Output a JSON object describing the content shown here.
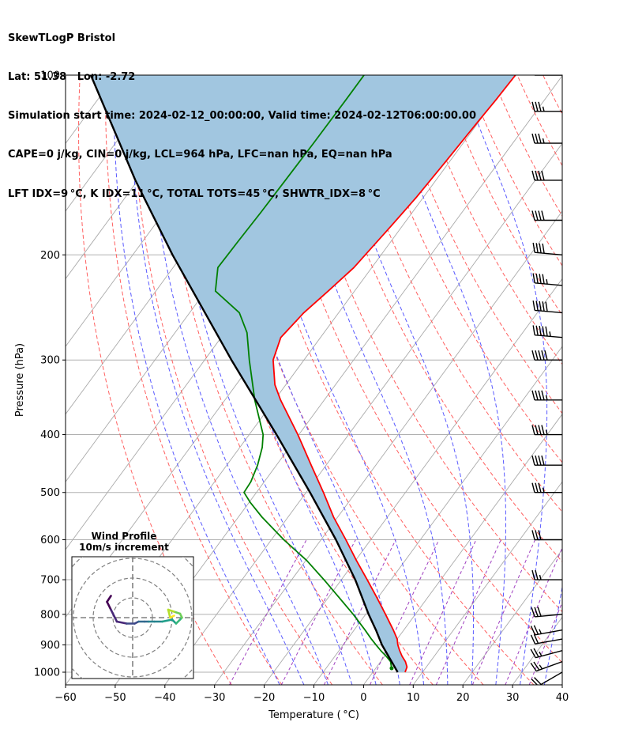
{
  "header": {
    "lines": [
      "SkewTLogP Bristol",
      "Lat: 51.38   Lon: -2.72",
      "Simulation start time: 2024-02-12_00:00:00, Valid time: 2024-02-12T06:00:00.00",
      "CAPE=0 j/kg, CIN=0 j/kg, LCL=964 hPa, LFC=nan hPa, EQ=nan hPa",
      "LFT IDX=9 °C, K IDX=11 °C, TOTAL TOTS=45 °C, SHWTR_IDX=8 °C"
    ]
  },
  "chart_data": {
    "type": "line",
    "subtype": "skew-t log-p",
    "xlabel": "Temperature ( °C)",
    "ylabel": "Pressure (hPa)",
    "xlim": [
      -60,
      40
    ],
    "ylim": [
      1050,
      100
    ],
    "yscale": "log",
    "xticks": [
      -60,
      -50,
      -40,
      -30,
      -20,
      -10,
      0,
      10,
      20,
      30,
      40
    ],
    "yticks": [
      100,
      200,
      300,
      400,
      500,
      600,
      700,
      800,
      900,
      1000
    ],
    "grid": true,
    "colors": {
      "temperature": "#ff0000",
      "dewpoint": "#008000",
      "parcel": "#000000",
      "shade": "#a1c6e0",
      "isotherms": "#aaaaaa",
      "dry_adiabats": "#ff6060",
      "moist_adiabats": "#5a5aff",
      "mixing_ratio": "#a040c0"
    },
    "series": [
      {
        "name": "temperature",
        "pressure": [
          1000,
          980,
          960,
          940,
          920,
          900,
          880,
          850,
          800,
          750,
          700,
          650,
          600,
          550,
          500,
          450,
          400,
          350,
          330,
          300,
          275,
          250,
          230,
          210,
          200,
          180,
          160,
          140,
          120,
          110,
          100
        ],
        "values": [
          6.5,
          6.1,
          5.0,
          3.5,
          2.2,
          1.0,
          0.0,
          -2.1,
          -6.0,
          -10.2,
          -14.8,
          -19.8,
          -25.0,
          -30.8,
          -36.5,
          -43.0,
          -50.2,
          -58.8,
          -62.2,
          -66.2,
          -68.0,
          -67.0,
          -65.3,
          -63.6,
          -63.2,
          -62.3,
          -61.4,
          -60.8,
          -60.2,
          -59.8,
          -59.5
        ]
      },
      {
        "name": "dewpoint",
        "pressure": [
          985,
          960,
          940,
          920,
          900,
          880,
          850,
          800,
          750,
          700,
          650,
          600,
          550,
          520,
          500,
          480,
          450,
          420,
          400,
          350,
          300,
          270,
          250,
          230,
          210,
          190,
          170,
          150,
          130,
          110,
          100
        ],
        "values": [
          3.2,
          2.0,
          0.3,
          -1.6,
          -3.4,
          -5.2,
          -7.8,
          -12.5,
          -17.8,
          -23.5,
          -29.8,
          -37.5,
          -45.2,
          -49.7,
          -52.5,
          -52.7,
          -53.8,
          -55.5,
          -57.2,
          -64.0,
          -71.0,
          -75.5,
          -80.0,
          -88.0,
          -91.0,
          -90.8,
          -90.5,
          -90.3,
          -90.1,
          -90.0,
          -90.0
        ]
      },
      {
        "name": "parcel",
        "pressure": [
          1000,
          964,
          900,
          850,
          800,
          700,
          600,
          500,
          400,
          300,
          200,
          150,
          100
        ],
        "values": [
          5.0,
          2.5,
          -2.2,
          -5.6,
          -9.4,
          -17.2,
          -27.0,
          -39.2,
          -54.5,
          -74.6,
          -102.0,
          -120.5,
          -145.0
        ]
      }
    ],
    "wind_barbs": {
      "pressure": [
        1000,
        960,
        920,
        880,
        850,
        800,
        700,
        600,
        500,
        450,
        400,
        350,
        300,
        275,
        250,
        225,
        200,
        175,
        150,
        130,
        115,
        100
      ],
      "speed_kt": [
        20,
        25,
        25,
        20,
        25,
        30,
        25,
        30,
        35,
        40,
        45,
        45,
        50,
        55,
        50,
        45,
        40,
        40,
        40,
        35,
        35,
        30
      ],
      "direction_deg": [
        240,
        250,
        255,
        260,
        260,
        265,
        270,
        270,
        270,
        270,
        270,
        270,
        270,
        275,
        275,
        275,
        275,
        270,
        270,
        270,
        270,
        270
      ]
    },
    "wind_profile": {
      "title": "Wind Profile",
      "subtitle": "10m/s increment",
      "u": [
        -11,
        -13,
        -11,
        -8,
        -3,
        1,
        3,
        6,
        8,
        11,
        15,
        20,
        22,
        24,
        25,
        24,
        21,
        18,
        19,
        21
      ],
      "v": [
        11,
        8,
        4,
        -2,
        -3,
        -3,
        -2,
        -2,
        -2,
        -2,
        -2,
        -1,
        -3,
        -1,
        0,
        2,
        3,
        4,
        0,
        1
      ]
    }
  }
}
